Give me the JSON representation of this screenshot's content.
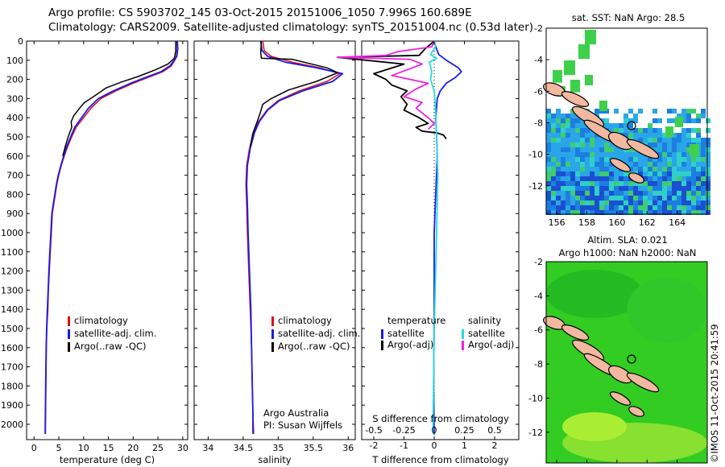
{
  "header": {
    "line1": "Argo profile: CS 5903702_145 03-Oct-2015 20151006_1050 7.996S 160.689E",
    "line2": "Climatology: CARS2009. Satellite-adjusted climatology: synTS_20151004.nc (0.53d later)"
  },
  "colors": {
    "climatology": "#dd1111",
    "satellite": "#1a1aee",
    "argo": "#000000",
    "salinity_satellite": "#22dddd",
    "salinity_argo": "#ee22dd",
    "land": "#f2b8a0"
  },
  "notes": {
    "institution": "Argo Australia",
    "pi": "PI: Susan Wijffels",
    "credit": "©IMOS 11-Oct-2015 20:41:59"
  },
  "chart_data": [
    {
      "type": "line",
      "xlabel": "temperature (deg C)",
      "ylabel": "",
      "xlim": [
        -1.5,
        31
      ],
      "ylim": [
        2080,
        0
      ],
      "xticks": [
        "0",
        "5",
        "10",
        "15",
        "20",
        "25",
        "30"
      ],
      "yticks": [
        "0",
        "100",
        "200",
        "300",
        "400",
        "500",
        "600",
        "700",
        "800",
        "900",
        "1000",
        "1100",
        "1200",
        "1300",
        "1400",
        "1500",
        "1600",
        "1700",
        "1800",
        "1900",
        "2000"
      ],
      "legend": [
        "climatology",
        "satellite-adj. clim.",
        "Argo(..raw -QC)"
      ],
      "series": [
        {
          "name": "climatology",
          "x": [
            28.8,
            28.9,
            28.7,
            28.4,
            27.7,
            26.0,
            23.0,
            20.0,
            16.5,
            13.5,
            11.5,
            10.0,
            8.5,
            7.6,
            6.8,
            6.1,
            5.5,
            5.0,
            4.6,
            4.3,
            4.0,
            3.7,
            3.5,
            3.3,
            3.1,
            2.9,
            2.8,
            2.6,
            2.5,
            2.4,
            2.3
          ],
          "y": [
            0,
            40,
            80,
            100,
            130,
            160,
            190,
            220,
            260,
            300,
            350,
            400,
            450,
            500,
            550,
            600,
            650,
            700,
            750,
            800,
            850,
            900,
            1000,
            1100,
            1200,
            1300,
            1400,
            1500,
            1600,
            1800,
            2050
          ]
        },
        {
          "name": "satellite-adj. clim.",
          "x": [
            28.9,
            29.0,
            28.8,
            28.3,
            27.4,
            25.6,
            22.5,
            19.5,
            16.0,
            13.0,
            11.0,
            9.6,
            8.2,
            7.4,
            6.6,
            6.0,
            5.4,
            4.9,
            4.5,
            4.2,
            3.9,
            3.6,
            3.4,
            3.2,
            3.0,
            2.85,
            2.7,
            2.55,
            2.45,
            2.35,
            2.25
          ],
          "y": [
            0,
            40,
            80,
            100,
            130,
            160,
            190,
            220,
            260,
            300,
            350,
            400,
            450,
            500,
            550,
            600,
            650,
            700,
            750,
            800,
            850,
            900,
            1000,
            1100,
            1200,
            1300,
            1400,
            1500,
            1600,
            1800,
            2050
          ]
        },
        {
          "name": "Argo(..raw -QC)",
          "x": [
            28.6,
            28.6,
            28.3,
            27.0,
            24.5,
            21.0,
            17.5,
            14.5,
            12.0,
            10.2,
            9.2,
            8.0,
            7.5,
            7.6,
            6.9,
            6.3,
            5.8
          ],
          "y": [
            0,
            50,
            90,
            120,
            150,
            185,
            215,
            245,
            290,
            320,
            350,
            390,
            420,
            450,
            500,
            550,
            600
          ]
        }
      ]
    },
    {
      "type": "line",
      "xlabel": "salinity",
      "ylabel": "",
      "xlim": [
        33.8,
        36.1
      ],
      "ylim": [
        2080,
        0
      ],
      "xticks": [
        "34",
        "34.5",
        "35",
        "35.5",
        "36"
      ],
      "legend": [
        "climatology",
        "satellite-adj. clim.",
        "Argo(..raw -QC)"
      ],
      "series": [
        {
          "name": "climatology",
          "x": [
            34.78,
            34.8,
            34.9,
            35.2,
            35.6,
            35.88,
            35.7,
            35.3,
            35.0,
            34.84,
            34.72,
            34.65,
            34.59,
            34.55,
            34.54,
            34.55,
            34.56,
            34.58,
            34.6,
            34.62,
            34.63,
            34.64,
            34.65
          ],
          "y": [
            0,
            50,
            80,
            110,
            140,
            170,
            210,
            260,
            310,
            360,
            420,
            480,
            560,
            650,
            750,
            850,
            1000,
            1200,
            1400,
            1600,
            1800,
            1950,
            2050
          ]
        },
        {
          "name": "satellite-adj. clim.",
          "x": [
            34.75,
            34.77,
            34.85,
            35.1,
            35.55,
            35.92,
            35.78,
            35.35,
            35.02,
            34.85,
            34.73,
            34.66,
            34.6,
            34.56,
            34.55,
            34.56,
            34.57,
            34.59,
            34.61,
            34.62,
            34.63,
            34.64,
            34.64
          ],
          "y": [
            0,
            50,
            80,
            110,
            140,
            170,
            210,
            260,
            310,
            360,
            420,
            480,
            560,
            650,
            750,
            850,
            1000,
            1200,
            1400,
            1600,
            1800,
            1950,
            2050
          ]
        },
        {
          "name": "Argo(..raw -QC)",
          "x": [
            34.76,
            34.75,
            34.76,
            35.2,
            35.7,
            35.85,
            35.55,
            35.15,
            34.9,
            34.78,
            34.74,
            34.7,
            34.64,
            34.6
          ],
          "y": [
            0,
            60,
            90,
            95,
            140,
            165,
            210,
            255,
            300,
            330,
            380,
            420,
            480,
            550
          ]
        }
      ]
    },
    {
      "type": "line",
      "xlabel": "T difference from climatology",
      "xlabel_top": "S difference from climatology",
      "xlim_T": [
        -2.4,
        2.8
      ],
      "xticks_T": [
        "-2",
        "-1",
        "0",
        "1",
        "2"
      ],
      "xticks_S": [
        "-0.5",
        "-0.25",
        "0",
        "0.25",
        "0.5"
      ],
      "ylim": [
        2080,
        0
      ],
      "legend_temperature": [
        "temperature",
        "satellite",
        "Argo(-adj)"
      ],
      "legend_salinity": [
        "salinity",
        "satellite",
        "Argo(-adj)"
      ],
      "series": [
        {
          "name": "satellite",
          "variable": "temperature",
          "x": [
            0,
            0.05,
            0.15,
            0.4,
            0.8,
            0.9,
            0.7,
            0.4,
            0.2,
            0.1,
            0.05,
            0.08,
            0.1,
            0.05,
            0.0,
            0.0,
            -0.02,
            0.0
          ],
          "y": [
            0,
            30,
            70,
            100,
            140,
            160,
            190,
            220,
            260,
            300,
            400,
            500,
            600,
            800,
            1000,
            1400,
            1800,
            2050
          ]
        },
        {
          "name": "Argo(-adj)",
          "variable": "temperature",
          "x": [
            0.0,
            -0.3,
            -0.5,
            -3.2,
            -1.0,
            -2.0,
            -1.6,
            -1.4,
            -0.9,
            -1.1,
            -0.9,
            -1.0,
            -0.5,
            -0.2,
            -0.6,
            -0.4,
            0.1,
            0.3,
            0.4
          ],
          "y": [
            0,
            40,
            75,
            85,
            120,
            170,
            200,
            230,
            260,
            290,
            330,
            360,
            400,
            430,
            450,
            470,
            480,
            490,
            510
          ]
        },
        {
          "name": "satellite",
          "variable": "salinity",
          "x": [
            0.0,
            0.01,
            -0.03,
            0.02,
            -0.04,
            -0.02,
            -0.03,
            0.0,
            0.01,
            0.02,
            0.03,
            0.02,
            0.0,
            -0.01
          ],
          "y": [
            0,
            30,
            70,
            90,
            110,
            160,
            200,
            260,
            350,
            500,
            700,
            1000,
            1500,
            2050
          ]
        },
        {
          "name": "Argo(-adj)",
          "variable": "salinity",
          "x": [
            0.0,
            -0.02,
            -0.3,
            -0.4,
            -0.8,
            -0.2,
            -0.1,
            -0.35,
            -0.2,
            -0.05,
            -0.15,
            -0.25,
            -0.1,
            -0.15,
            -0.05,
            0.0,
            -0.05
          ],
          "y": [
            0,
            30,
            55,
            75,
            85,
            95,
            120,
            180,
            200,
            220,
            250,
            290,
            320,
            350,
            400,
            430,
            460
          ]
        }
      ]
    }
  ],
  "maps": [
    {
      "title": "sat. SST: NaN Argo: 28.5",
      "xticks": [
        "156",
        "158",
        "160",
        "162",
        "164"
      ],
      "yticks": [
        "-2",
        "-4",
        "-6",
        "-8",
        "-10",
        "-12"
      ]
    },
    {
      "title_line1": "Altim. SLA: 0.021",
      "title_line2": "Argo h1000: NaN h2000: NaN",
      "xticks": [
        "156",
        "158",
        "160",
        "162",
        "164"
      ],
      "yticks": [
        "-2",
        "-4",
        "-6",
        "-8",
        "-10",
        "-12"
      ]
    }
  ]
}
